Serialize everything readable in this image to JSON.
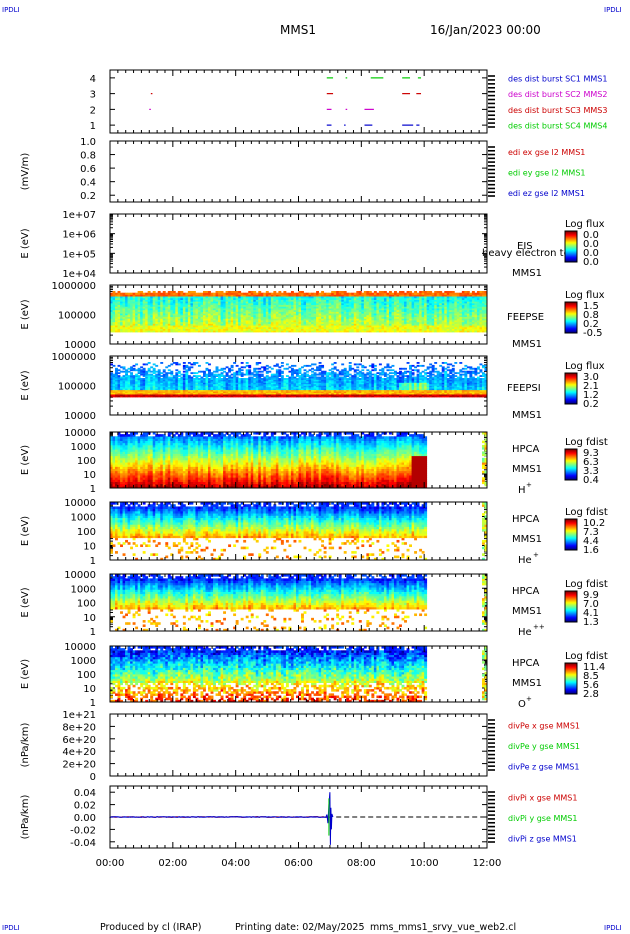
{
  "header": {
    "corner_tl": "IPDLI",
    "corner_tr": "IPDLI",
    "corner_bl": "IPDLI",
    "corner_br": "IPDLI",
    "mission": "MMS1",
    "date": "16/Jan/2023 00:00"
  },
  "footer": {
    "produced_by": "Produced by cl (IRAP)",
    "printing_date": "Printing date: 02/May/2025",
    "product": "mms_mms1_srvy_vue_web2.cl"
  },
  "colors": {
    "blue": "#0000cc",
    "magenta": "#cc00cc",
    "red": "#cc0000",
    "green": "#00cc00"
  },
  "chart_data": [
    {
      "id": "burst",
      "type": "scatter",
      "yticks": [
        "1",
        "2",
        "3",
        "4"
      ],
      "ylim": [
        0.5,
        4.5
      ],
      "legend": [
        {
          "label": "des dist burst SC1 MMS1",
          "color": "#0000cc"
        },
        {
          "label": "des dist burst SC2 MMS2",
          "color": "#cc00cc"
        },
        {
          "label": "des dist burst SC3 MMS3",
          "color": "#cc0000"
        },
        {
          "label": "des dist burst SC4 MMS4",
          "color": "#00cc00"
        }
      ],
      "segments": [
        {
          "sc": 4,
          "t0": 6.9,
          "t1": 7.1
        },
        {
          "sc": 4,
          "t0": 7.5,
          "t1": 7.55
        },
        {
          "sc": 4,
          "t0": 8.3,
          "t1": 8.7
        },
        {
          "sc": 4,
          "t0": 9.3,
          "t1": 9.55
        },
        {
          "sc": 4,
          "t0": 9.8,
          "t1": 9.9
        },
        {
          "sc": 3,
          "t0": 1.3,
          "t1": 1.35
        },
        {
          "sc": 3,
          "t0": 6.9,
          "t1": 7.1
        },
        {
          "sc": 3,
          "t0": 9.3,
          "t1": 9.55
        },
        {
          "sc": 3,
          "t0": 9.75,
          "t1": 9.9
        },
        {
          "sc": 2,
          "t0": 1.25,
          "t1": 1.3
        },
        {
          "sc": 2,
          "t0": 6.9,
          "t1": 7.05
        },
        {
          "sc": 2,
          "t0": 7.5,
          "t1": 7.55
        },
        {
          "sc": 2,
          "t0": 8.1,
          "t1": 8.4
        },
        {
          "sc": 1,
          "t0": 6.9,
          "t1": 7.05
        },
        {
          "sc": 1,
          "t0": 7.45,
          "t1": 7.5
        },
        {
          "sc": 1,
          "t0": 8.1,
          "t1": 8.35
        },
        {
          "sc": 1,
          "t0": 9.3,
          "t1": 9.65
        },
        {
          "sc": 1,
          "t0": 9.75,
          "t1": 9.85
        }
      ]
    },
    {
      "id": "edi",
      "type": "line",
      "ylabel": "(mV/m)",
      "yticks": [
        "0.2",
        "0.4",
        "0.6",
        "0.8",
        "1.0"
      ],
      "ylim": [
        0.1,
        1.0
      ],
      "legend": [
        {
          "label": "edi ex gse l2 MMS1",
          "color": "#cc0000"
        },
        {
          "label": "edi ey gse l2 MMS1",
          "color": "#00cc00"
        },
        {
          "label": "edi ez gse l2 MMS1",
          "color": "#0000cc"
        }
      ]
    },
    {
      "id": "eis",
      "type": "heatmap",
      "ylabel": "E (eV)",
      "yticks": [
        "1e+04",
        "1e+05",
        "1e+06",
        "1e+07"
      ],
      "instrument": "EIS",
      "overlay_text": "heavy electron to",
      "spacecraft": "MMS1",
      "colorbar": {
        "title": "Log flux",
        "ticks": [
          "0.0",
          "0.0",
          "0.0",
          "0.0"
        ]
      }
    },
    {
      "id": "feepse",
      "type": "heatmap",
      "ylabel": "E (eV)",
      "yticks": [
        "10000",
        "100000",
        "1000000"
      ],
      "instrument": "FEEPSE",
      "spacecraft": "MMS1",
      "colorbar": {
        "title": "Log flux",
        "ticks": [
          "1.5",
          "0.8",
          "0.2",
          "-0.5"
        ]
      }
    },
    {
      "id": "feepsi",
      "type": "heatmap",
      "ylabel": "E (eV)",
      "yticks": [
        "10000",
        "100000",
        "1000000"
      ],
      "instrument": "FEEPSI",
      "spacecraft": "MMS1",
      "colorbar": {
        "title": "Log flux",
        "ticks": [
          "3.0",
          "2.1",
          "1.2",
          "0.2"
        ]
      }
    },
    {
      "id": "hpca_h",
      "type": "heatmap",
      "ylabel": "E (eV)",
      "yticks": [
        "1",
        "10",
        "100",
        "1000",
        "10000"
      ],
      "instrument": "HPCA",
      "spacecraft": "MMS1",
      "species": "H",
      "charge": "+",
      "colorbar": {
        "title": "Log fdist",
        "ticks": [
          "9.3",
          "6.3",
          "3.3",
          "0.4"
        ]
      }
    },
    {
      "id": "hpca_he",
      "type": "heatmap",
      "ylabel": "E (eV)",
      "yticks": [
        "1",
        "10",
        "100",
        "1000",
        "10000"
      ],
      "instrument": "HPCA",
      "spacecraft": "MMS1",
      "species": "He",
      "charge": "+",
      "colorbar": {
        "title": "Log fdist",
        "ticks": [
          "10.2",
          "7.3",
          "4.4",
          "1.6"
        ]
      }
    },
    {
      "id": "hpca_hepp",
      "type": "heatmap",
      "ylabel": "E (eV)",
      "yticks": [
        "1",
        "10",
        "100",
        "1000",
        "10000"
      ],
      "instrument": "HPCA",
      "spacecraft": "MMS1",
      "species": "He",
      "charge": "++",
      "colorbar": {
        "title": "Log fdist",
        "ticks": [
          "9.9",
          "7.0",
          "4.1",
          "1.3"
        ]
      }
    },
    {
      "id": "hpca_o",
      "type": "heatmap",
      "ylabel": "E (eV)",
      "yticks": [
        "1",
        "10",
        "100",
        "1000",
        "10000"
      ],
      "instrument": "HPCA",
      "spacecraft": "MMS1",
      "species": "O",
      "charge": "+",
      "colorbar": {
        "title": "Log fdist",
        "ticks": [
          "11.4",
          "8.5",
          "5.6",
          "2.8"
        ]
      }
    },
    {
      "id": "divpe",
      "type": "line",
      "ylabel": "(nPa/km)",
      "yticks": [
        "0",
        "2e+20",
        "4e+20",
        "6e+20",
        "8e+20",
        "1e+21"
      ],
      "ylim": [
        0,
        1e+21
      ],
      "legend": [
        {
          "label": "divPe x gse MMS1",
          "color": "#cc0000"
        },
        {
          "label": "divPe y gse MMS1",
          "color": "#00cc00"
        },
        {
          "label": "divPe z gse MMS1",
          "color": "#0000cc"
        }
      ]
    },
    {
      "id": "divpi",
      "type": "line",
      "ylabel": "(nPa/km)",
      "yticks": [
        "-0.04",
        "-0.02",
        "0.00",
        "0.02",
        "0.04"
      ],
      "ylim": [
        -0.05,
        0.05
      ],
      "legend": [
        {
          "label": "divPi x gse MMS1",
          "color": "#cc0000"
        },
        {
          "label": "divPi y gse MMS1",
          "color": "#00cc00"
        },
        {
          "label": "divPi z gse MMS1",
          "color": "#0000cc"
        }
      ],
      "spike": {
        "t": 7.0,
        "min": -0.045,
        "max": 0.04
      }
    }
  ],
  "xaxis": {
    "ticks": [
      "00:00",
      "02:00",
      "04:00",
      "06:00",
      "08:00",
      "10:00",
      "12:00"
    ],
    "xlim_hours": [
      0,
      12
    ],
    "data_gap_hours": [
      10.1,
      11.8
    ]
  }
}
